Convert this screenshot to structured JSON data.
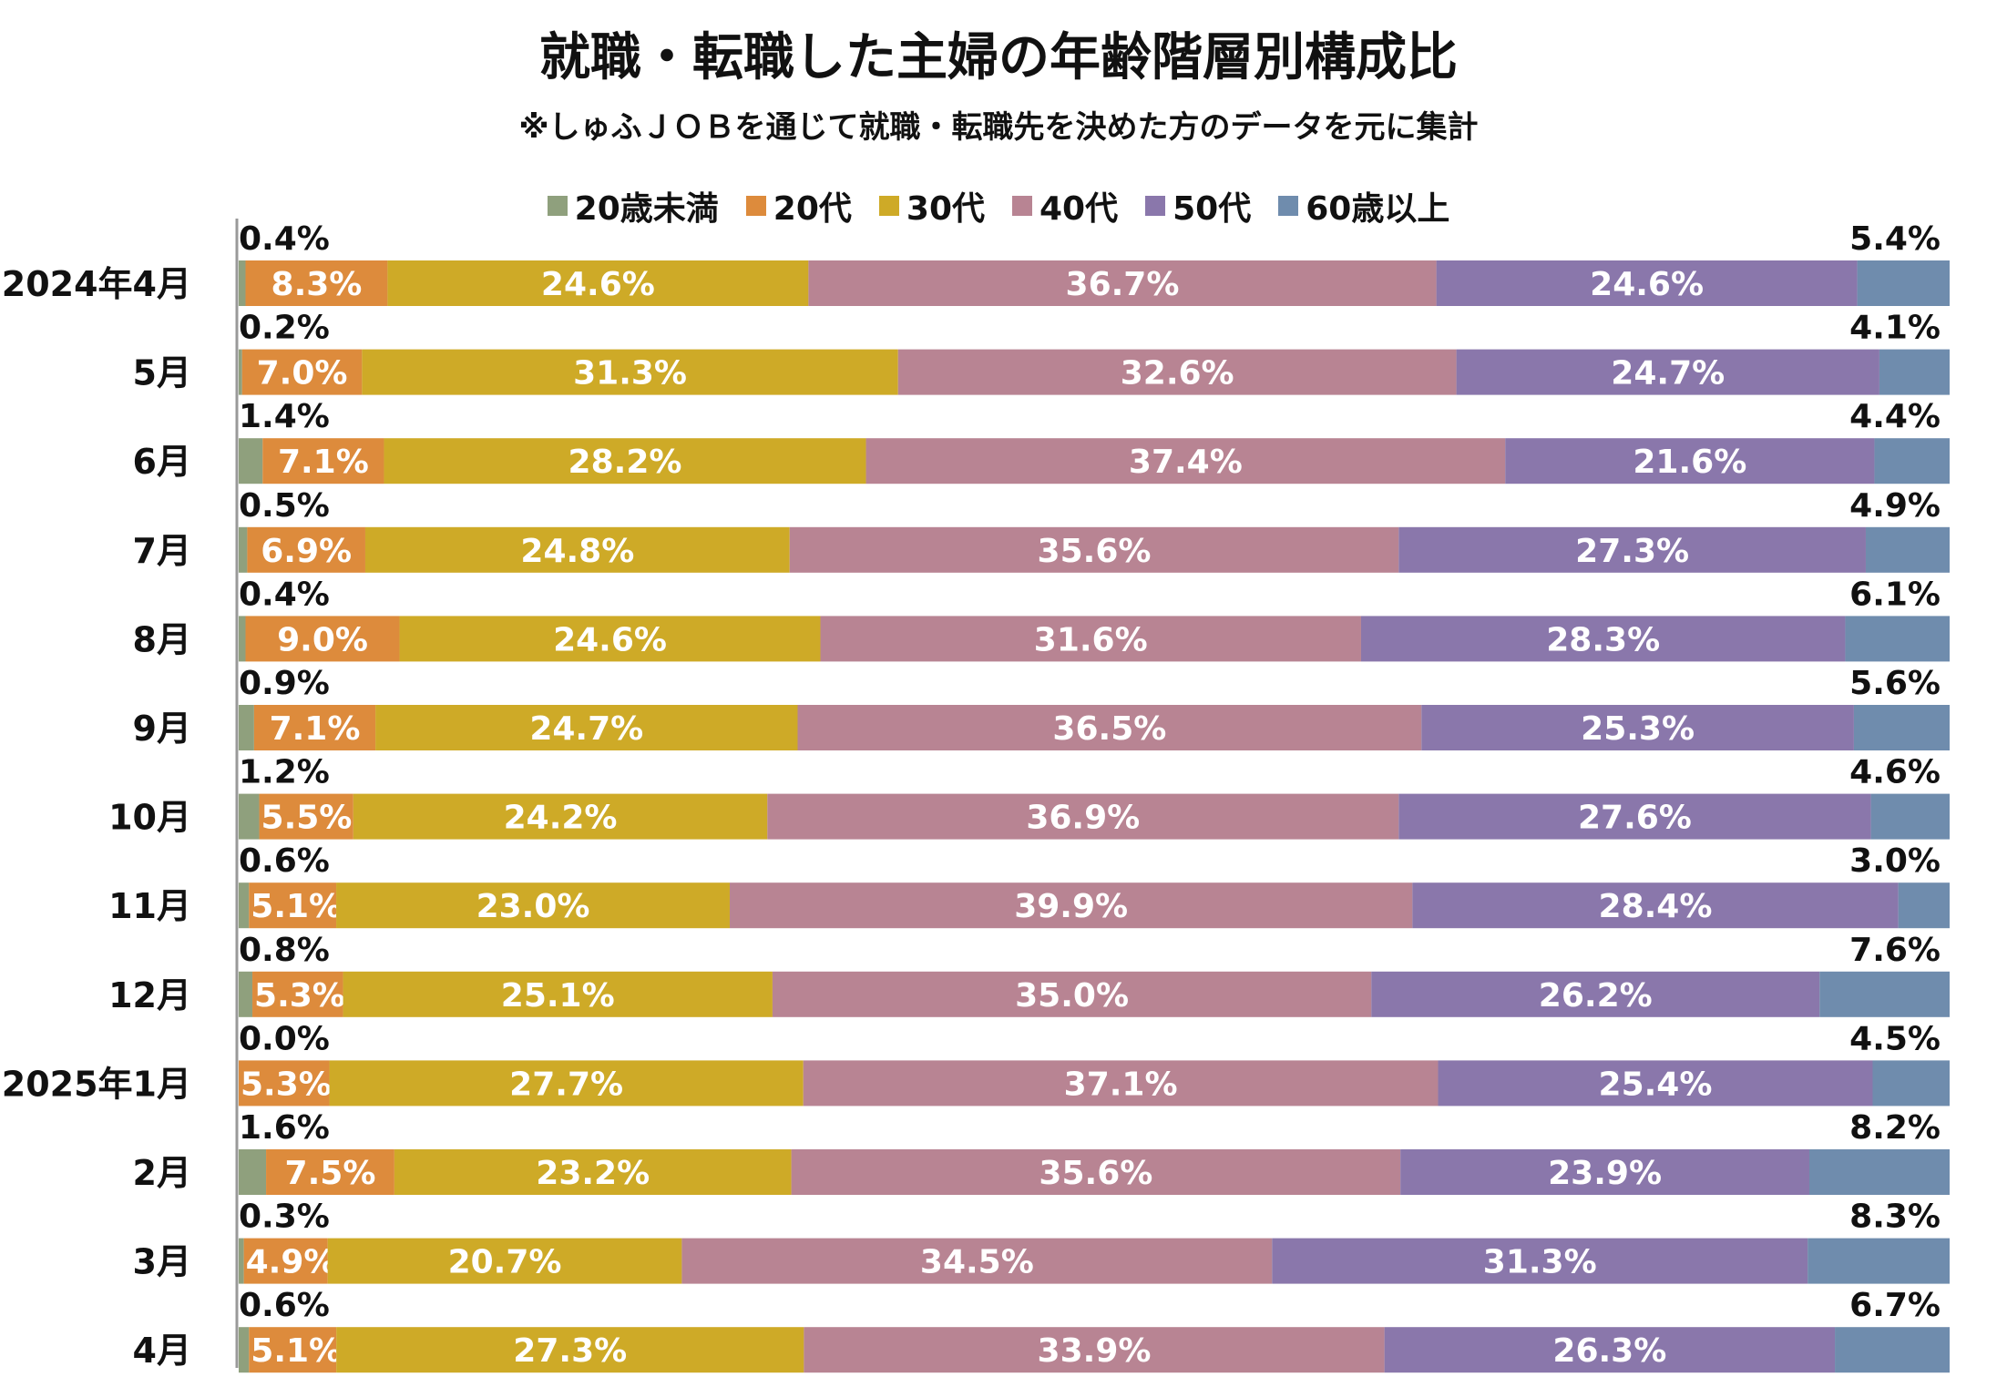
{
  "chart_data": {
    "type": "bar",
    "orientation": "horizontal",
    "stacked": true,
    "title": "就職・転職した主婦の年齢階層別構成比",
    "subtitle": "※しゅふＪＯＢを通じて就職・転職先を決めた方のデータを元に集計",
    "legend_position": "top",
    "xlim": [
      0,
      100
    ],
    "categories": [
      "2024年4月",
      "5月",
      "6月",
      "7月",
      "8月",
      "9月",
      "10月",
      "11月",
      "12月",
      "2025年1月",
      "2月",
      "3月",
      "4月"
    ],
    "series": [
      {
        "name": "20歳未満",
        "color": "#8fa07d",
        "values": [
          0.4,
          0.2,
          1.4,
          0.5,
          0.4,
          0.9,
          1.2,
          0.6,
          0.8,
          0.0,
          1.6,
          0.3,
          0.6
        ]
      },
      {
        "name": "20代",
        "color": "#dd8b3c",
        "values": [
          8.3,
          7.0,
          7.1,
          6.9,
          9.0,
          7.1,
          5.5,
          5.1,
          5.3,
          5.3,
          7.5,
          4.9,
          5.1
        ]
      },
      {
        "name": "30代",
        "color": "#ceaa27",
        "values": [
          24.6,
          31.3,
          28.2,
          24.8,
          24.6,
          24.7,
          24.2,
          23.0,
          25.1,
          27.7,
          23.2,
          20.7,
          27.3
        ]
      },
      {
        "name": "40代",
        "color": "#b88493",
        "values": [
          36.7,
          32.6,
          37.4,
          35.6,
          31.6,
          36.5,
          36.9,
          39.9,
          35.0,
          37.1,
          35.6,
          34.5,
          33.9
        ]
      },
      {
        "name": "50代",
        "color": "#8a77ab",
        "values": [
          24.6,
          24.7,
          21.6,
          27.3,
          28.3,
          25.3,
          27.6,
          28.4,
          26.2,
          25.4,
          23.9,
          31.3,
          26.3
        ]
      },
      {
        "name": "60歳以上",
        "color": "#6f8cad",
        "values": [
          5.4,
          4.1,
          4.4,
          4.9,
          6.1,
          5.6,
          4.6,
          3.0,
          7.6,
          4.5,
          8.2,
          8.3,
          6.7
        ]
      }
    ],
    "data_labels": [
      [
        "0.4%",
        "8.3%",
        "24.6%",
        "36.7%",
        "24.6%",
        "5.4%"
      ],
      [
        "0.2%",
        "7.0%",
        "31.3%",
        "32.6%",
        "24.7%",
        "4.1%"
      ],
      [
        "1.4%",
        "7.1%",
        "28.2%",
        "37.4%",
        "21.6%",
        "4.4%"
      ],
      [
        "0.5%",
        "6.9%",
        "24.8%",
        "35.6%",
        "27.3%",
        "4.9%"
      ],
      [
        "0.4%",
        "9.0%",
        "24.6%",
        "31.6%",
        "28.3%",
        "6.1%"
      ],
      [
        "0.9%",
        "7.1%",
        "24.7%",
        "36.5%",
        "25.3%",
        "5.6%"
      ],
      [
        "1.2%",
        "5.5%",
        "24.2%",
        "36.9%",
        "27.6%",
        "4.6%"
      ],
      [
        "0.6%",
        "5.1%",
        "23.0%",
        "39.9%",
        "28.4%",
        "3.0%"
      ],
      [
        "0.8%",
        "5.3%",
        "25.1%",
        "35.0%",
        "26.2%",
        "7.6%"
      ],
      [
        "0.0%",
        "5.3%",
        "27.7%",
        "37.1%",
        "25.4%",
        "4.5%"
      ],
      [
        "1.6%",
        "7.5%",
        "23.2%",
        "35.6%",
        "23.9%",
        "8.2%"
      ],
      [
        "0.3%",
        "4.9%",
        "20.7%",
        "34.5%",
        "31.3%",
        "8.3%"
      ],
      [
        "0.6%",
        "5.1%",
        "27.3%",
        "33.9%",
        "26.3%",
        "6.7%"
      ]
    ]
  }
}
